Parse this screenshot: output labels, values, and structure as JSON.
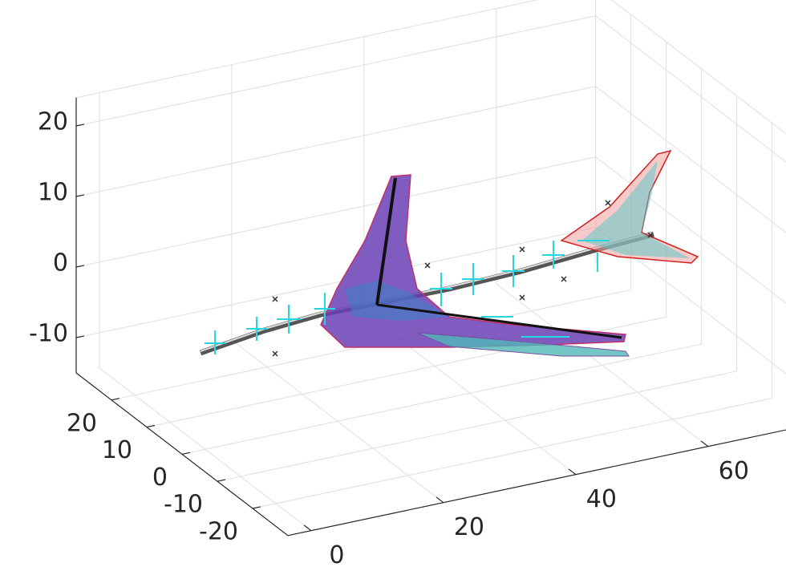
{
  "chart_data": {
    "type": "surface3d",
    "xlim": [
      -3.5,
      75
    ],
    "ylim": [
      -30,
      30
    ],
    "zlim": [
      -15,
      24
    ],
    "xticks": [
      0,
      20,
      40,
      60
    ],
    "yticks": [
      -20,
      -10,
      0,
      10,
      20
    ],
    "zticks": [
      -10,
      0,
      10,
      20
    ],
    "grid": true
  }
}
